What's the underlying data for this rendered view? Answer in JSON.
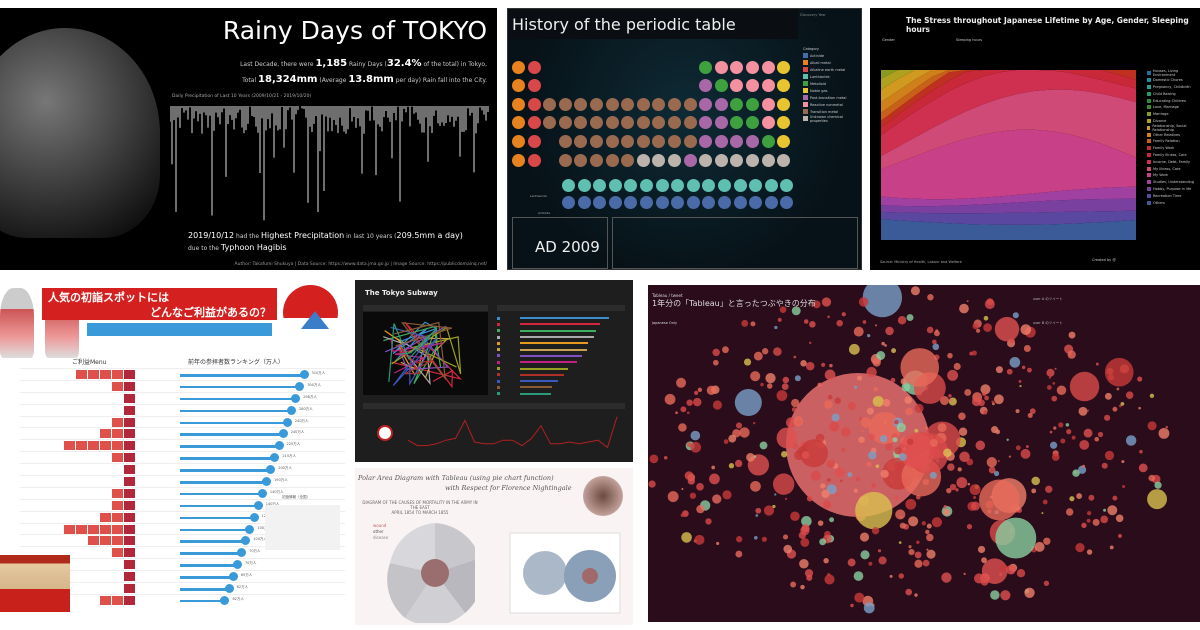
{
  "rain": {
    "title": "Rainy Days of TOKYO",
    "line1_pre": "Last Decade, there were",
    "rainy_days": "1,185",
    "line1_mid": "Rainy Days (",
    "pct": "32.4%",
    "line1_post": "of the total) in Tokyo,",
    "line2_pre": "Total",
    "total_mm": "18,324mm",
    "line2_mid": "(Average",
    "avg_mm": "13.8mm",
    "line2_post": "per day) Rain fall into the City.",
    "chart_label": "Daily Precipitation of Last 10 Years (2009/10/21 - 2019/10/20)",
    "note_date": "2019/10/12",
    "note_had": "had the",
    "note_highest": "Highest Precipitation",
    "note_in": "in last 10 years (",
    "note_value": "209.5mm a day)",
    "note_due": "due to the",
    "note_typhoon": "Typhoon Hagibis",
    "footer": "Author: Takafumi Shukuya | Data Source: https://www.data.jma.go.jp | Image Source: https://publicdomainq.net/"
  },
  "periodic": {
    "title": "History of the periodic table",
    "year": "AD 2009",
    "discovery_label": "Discovery Year",
    "legend_title": "Category",
    "categories": [
      {
        "name": "Actinide",
        "color": "#4a6aa8"
      },
      {
        "name": "Alkali metal",
        "color": "#e8821e"
      },
      {
        "name": "Alkaline earth metal",
        "color": "#d94848"
      },
      {
        "name": "Lanthanide",
        "color": "#5fbfb0"
      },
      {
        "name": "Metalloid",
        "color": "#3fa040"
      },
      {
        "name": "Noble gas",
        "color": "#e8c430"
      },
      {
        "name": "Post-transition metal",
        "color": "#a868a8"
      },
      {
        "name": "Reactive nonmetal",
        "color": "#f590a0"
      },
      {
        "name": "Transition metal",
        "color": "#9a6a50"
      },
      {
        "name": "Unknown chemical properties",
        "color": "#bcb4ac"
      }
    ],
    "row_labels": [
      "Lanthanide",
      "Actinide"
    ]
  },
  "stress": {
    "title": "The Stress throughout Japanese Lifetime by Age, Gender, Sleeping hours",
    "filter1": "Gender",
    "filter2": "Sleeping hours",
    "legend": [
      "Houses, Living Environment",
      "Domestic Chores",
      "Pregnancy, Childbirth",
      "Child Raising",
      "Educating Children",
      "Love, Marriage",
      "Marriage",
      "Divorce",
      "Relationship, Social Relationship",
      "Other Relatives",
      "Family Relation",
      "Family Work",
      "Family Illness, Care",
      "Income, Debt, Family",
      "My Illness, Care",
      "My Work",
      "Studies, Understanding",
      "Hobby, Purpose in life",
      "Recreation Time",
      "Others"
    ],
    "source": "Source: Ministry of Health, Labour and Welfare",
    "credit": "Created by @"
  },
  "shrine": {
    "title_line1": "人気の初詣スポットには",
    "title_line2": "どんなご利益があるの？",
    "menu_header": "ご利益Menu",
    "rank_header": "前年の参拝者数ランキング（万人）",
    "map_label": "初詣情報（全国）",
    "values": [
      "310万人",
      "300万人",
      "298万人",
      "280万人",
      "240万人",
      "240万人",
      "220万人",
      "215万人",
      "200万人",
      "190万人",
      "140万人",
      "140万人",
      "120万人",
      "100万人",
      "100万人",
      "70万人",
      "70万人",
      "65万人",
      "62万人",
      "62万人"
    ]
  },
  "subway": {
    "title": "The Tokyo Subway",
    "lines": [
      {
        "color": "#3b8ed0",
        "value": 0.94
      },
      {
        "color": "#d0283a",
        "value": 0.84
      },
      {
        "color": "#3fae60",
        "value": 0.8
      },
      {
        "color": "#aaaaaa",
        "value": 0.78
      },
      {
        "color": "#e89a20",
        "value": 0.72
      },
      {
        "color": "#c8a050",
        "value": 0.7
      },
      {
        "color": "#8050c0",
        "value": 0.65
      },
      {
        "color": "#c02080",
        "value": 0.6
      },
      {
        "color": "#9aa020",
        "value": 0.5
      },
      {
        "color": "#b03028",
        "value": 0.46
      },
      {
        "color": "#3a5ac0",
        "value": 0.4
      },
      {
        "color": "#8a5a30",
        "value": 0.34
      },
      {
        "color": "#2a9a7a",
        "value": 0.33
      }
    ],
    "trend": [
      0.3,
      0.15,
      0.15,
      0.2,
      0.3,
      0.35,
      0.85,
      0.25,
      0.2,
      0.2,
      0.3,
      0.3,
      0.15,
      0.35,
      0.7,
      0.2,
      0.2,
      0.25,
      0.2,
      0.25,
      0.3,
      0.1,
      0.95
    ]
  },
  "nightingale": {
    "title1": "Polar Area Diagram with Tableau (using pie chart function)",
    "title2": "with Respect for Florence Nightingale",
    "diagram_title": "DIAGRAM OF THE CAUSES OF MORTALITY IN THE ARMY IN THE EAST",
    "diagram_sub": "APRIL 1854 TO MARCH 1855",
    "legend": [
      "wound",
      "other",
      "disease"
    ]
  },
  "tweets": {
    "hashtag": "Tableau / tweet",
    "title": "1年分の「Tableau」と言ったつぶやきの分布",
    "credit": "Japanese Only",
    "tl1": "user A のツイート",
    "tl2": "user B のツイート"
  }
}
